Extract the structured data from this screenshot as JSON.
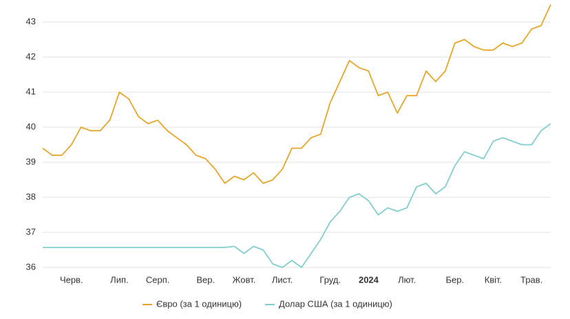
{
  "chart_data": {
    "type": "line",
    "categories": [
      null,
      null,
      null,
      "Черв.",
      null,
      null,
      null,
      null,
      "Лип.",
      null,
      null,
      null,
      "Серп.",
      null,
      null,
      null,
      null,
      "Вер.",
      null,
      null,
      null,
      "Жовт.",
      null,
      null,
      null,
      "Лист.",
      null,
      null,
      null,
      null,
      "Груд.",
      null,
      null,
      null,
      "2024",
      null,
      null,
      null,
      "Лют.",
      null,
      null,
      null,
      null,
      "Бер.",
      null,
      null,
      null,
      "Квіт.",
      null,
      null,
      null,
      "Трав.",
      null,
      null
    ],
    "series": [
      {
        "name": "Євро (за 1 одиницю)",
        "color": "#e8a427",
        "values": [
          39.4,
          39.2,
          39.2,
          39.5,
          40.0,
          39.9,
          39.9,
          40.2,
          41.0,
          40.8,
          40.3,
          40.1,
          40.2,
          39.9,
          39.7,
          39.5,
          39.2,
          39.1,
          38.8,
          38.4,
          38.6,
          38.5,
          38.7,
          38.4,
          38.5,
          38.8,
          39.4,
          39.4,
          39.7,
          39.8,
          40.7,
          41.3,
          41.9,
          41.7,
          41.6,
          40.9,
          41.0,
          40.4,
          40.9,
          40.9,
          41.6,
          41.3,
          41.6,
          42.4,
          42.5,
          42.3,
          42.2,
          42.2,
          42.4,
          42.3,
          42.4,
          42.8,
          42.9,
          43.5
        ]
      },
      {
        "name": "Долар США (за 1 одиницю)",
        "color": "#7fcfcf",
        "values": [
          36.57,
          36.57,
          36.57,
          36.57,
          36.57,
          36.57,
          36.57,
          36.57,
          36.57,
          36.57,
          36.57,
          36.57,
          36.57,
          36.57,
          36.57,
          36.57,
          36.57,
          36.57,
          36.57,
          36.57,
          36.6,
          36.4,
          36.6,
          36.5,
          36.1,
          36.0,
          36.2,
          36.0,
          36.4,
          36.8,
          37.3,
          37.6,
          38.0,
          38.1,
          37.9,
          37.5,
          37.7,
          37.6,
          37.7,
          38.3,
          38.4,
          38.1,
          38.3,
          38.9,
          39.3,
          39.2,
          39.1,
          39.6,
          39.7,
          39.6,
          39.5,
          39.5,
          39.9,
          40.1
        ]
      }
    ],
    "ylim": [
      36,
      43.5
    ],
    "yticks": [
      36,
      37,
      38,
      39,
      40,
      41,
      42,
      43
    ],
    "grid": true
  }
}
